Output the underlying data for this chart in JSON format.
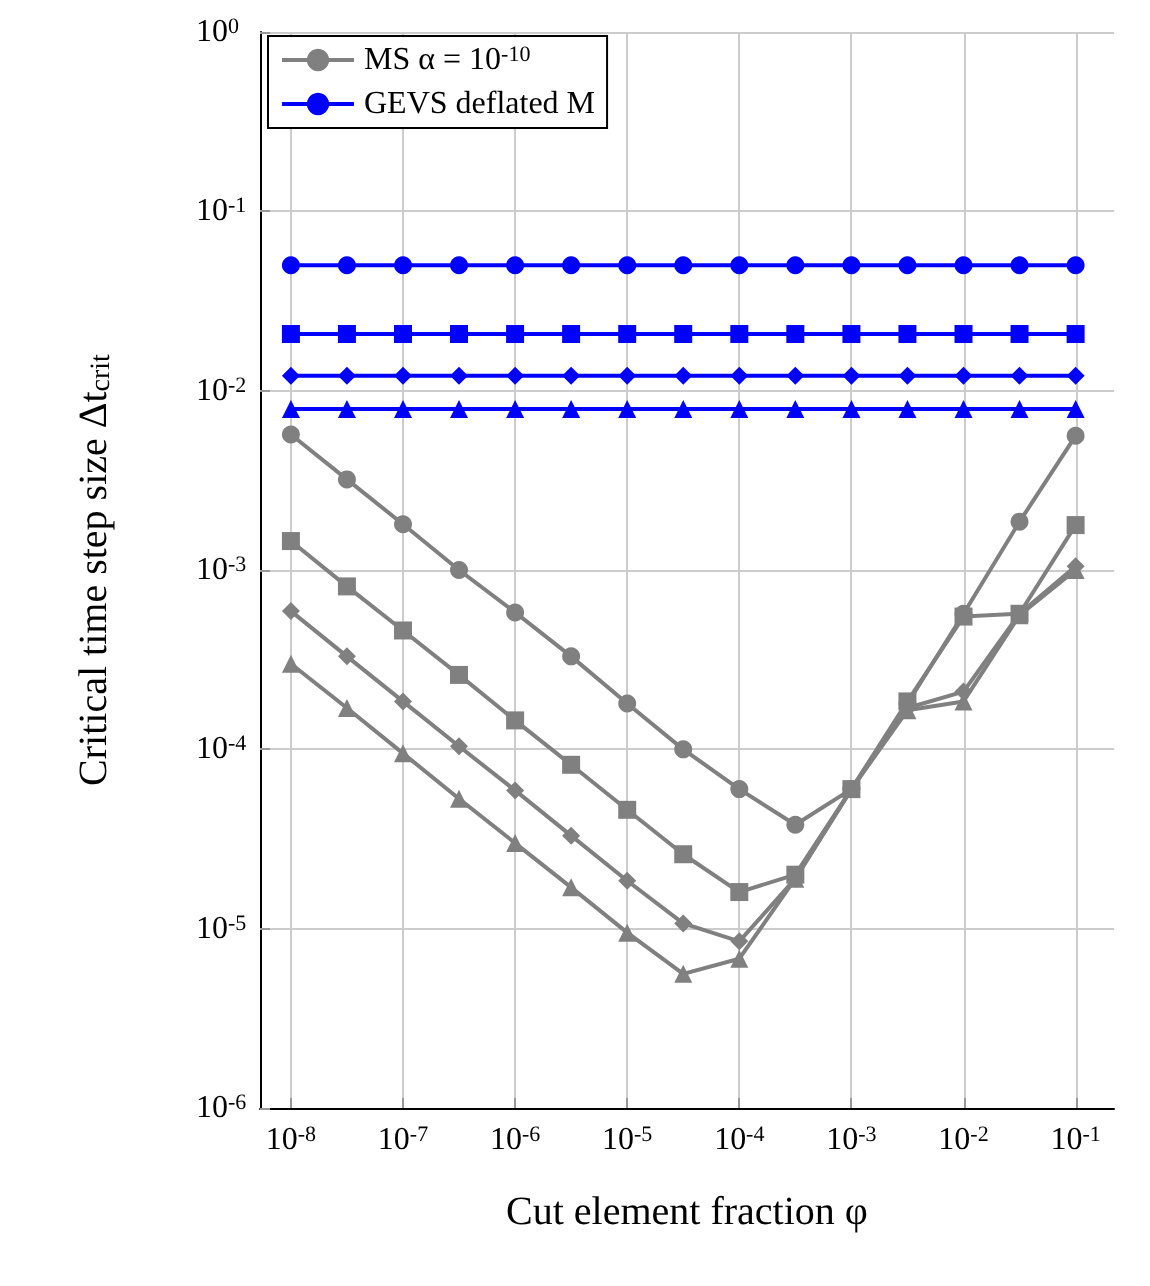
{
  "chart_data": {
    "type": "line",
    "xlabel": "Cut element fraction φ",
    "ylabel": "Critical time step size Δt$_{crit}$",
    "log": "xy",
    "grid": true,
    "legend": "top left",
    "line_style": "solid",
    "x": [
      1e-08,
      3.16e-08,
      1e-07,
      3.16e-07,
      1e-06,
      3.16e-06,
      1e-05,
      3.16e-05,
      0.0001,
      0.000316,
      0.001,
      0.00316,
      0.01,
      0.0316,
      0.1
    ],
    "xlim": [
      5.3e-09,
      0.22
    ],
    "ylim": [
      1e-06,
      1
    ],
    "xticks": [
      {
        "value": 1e-08,
        "label": "10$^{-8}$"
      },
      {
        "value": 1e-07,
        "label": "10$^{-7}$"
      },
      {
        "value": 1e-06,
        "label": "10$^{-6}$"
      },
      {
        "value": 1e-05,
        "label": "10$^{-5}$"
      },
      {
        "value": 0.0001,
        "label": "10$^{-4}$"
      },
      {
        "value": 0.001,
        "label": "10$^{-3}$"
      },
      {
        "value": 0.01,
        "label": "10$^{-2}$"
      },
      {
        "value": 0.1,
        "label": "10$^{-1}$"
      }
    ],
    "yticks": [
      {
        "value": 1e-06,
        "label": "10$^{-6}$"
      },
      {
        "value": 1e-05,
        "label": "10$^{-5}$"
      },
      {
        "value": 0.0001,
        "label": "10$^{-4}$"
      },
      {
        "value": 0.001,
        "label": "10$^{-3}$"
      },
      {
        "value": 0.01,
        "label": "10$^{-2}$"
      },
      {
        "value": 0.1,
        "label": "10$^{-1}$"
      },
      {
        "value": 1,
        "label": "10$^{0}$"
      }
    ],
    "series": [
      {
        "name": "MS α = 10$^{-10}$",
        "color": "#808080",
        "marker": "circle",
        "values": [
          0.0057,
          0.0032,
          0.0018,
          0.001,
          0.00058,
          0.00033,
          0.00018,
          0.0001,
          6e-05,
          3.8e-05,
          6e-05,
          0.00018,
          0.00057,
          0.00186,
          0.0056
        ]
      },
      {
        "color": "#808080",
        "marker": "square",
        "values": [
          0.00145,
          0.00081,
          0.00046,
          0.00026,
          0.000145,
          8.2e-05,
          4.6e-05,
          2.6e-05,
          1.6e-05,
          2e-05,
          6e-05,
          0.000185,
          0.00055,
          0.00057,
          0.00178
        ]
      },
      {
        "color": "#808080",
        "marker": "diamond",
        "values": [
          0.00059,
          0.00033,
          0.000185,
          0.000104,
          5.9e-05,
          3.3e-05,
          1.85e-05,
          1.07e-05,
          8.5e-06,
          1.9e-05,
          6e-05,
          0.00017,
          0.00021,
          0.00057,
          0.00105
        ]
      },
      {
        "color": "#808080",
        "marker": "triangle",
        "values": [
          0.0003,
          0.00017,
          9.5e-05,
          5.3e-05,
          3e-05,
          1.7e-05,
          9.5e-06,
          5.6e-06,
          6.8e-06,
          1.9e-05,
          6e-05,
          0.000165,
          0.000185,
          0.00056,
          0.001
        ]
      },
      {
        "name": "GEVS deflated M",
        "color": "#0000ff",
        "marker": "circle",
        "values": [
          0.05,
          0.05,
          0.05,
          0.05,
          0.05,
          0.05,
          0.05,
          0.05,
          0.05,
          0.05,
          0.05,
          0.05,
          0.05,
          0.05,
          0.05
        ]
      },
      {
        "color": "#0000ff",
        "marker": "square",
        "values": [
          0.0207,
          0.0207,
          0.0207,
          0.0207,
          0.0207,
          0.0207,
          0.0207,
          0.0207,
          0.0207,
          0.0207,
          0.0207,
          0.0207,
          0.0207,
          0.0207,
          0.0207
        ]
      },
      {
        "color": "#0000ff",
        "marker": "diamond",
        "values": [
          0.0121,
          0.0121,
          0.0121,
          0.0121,
          0.0121,
          0.0121,
          0.0121,
          0.0121,
          0.0121,
          0.0121,
          0.0121,
          0.0121,
          0.0121,
          0.0121,
          0.0121
        ]
      },
      {
        "color": "#0000ff",
        "marker": "triangle",
        "values": [
          0.0079,
          0.0079,
          0.0079,
          0.0079,
          0.0079,
          0.0079,
          0.0079,
          0.0079,
          0.0079,
          0.0079,
          0.0079,
          0.0079,
          0.0079,
          0.0079,
          0.0079
        ]
      }
    ]
  }
}
